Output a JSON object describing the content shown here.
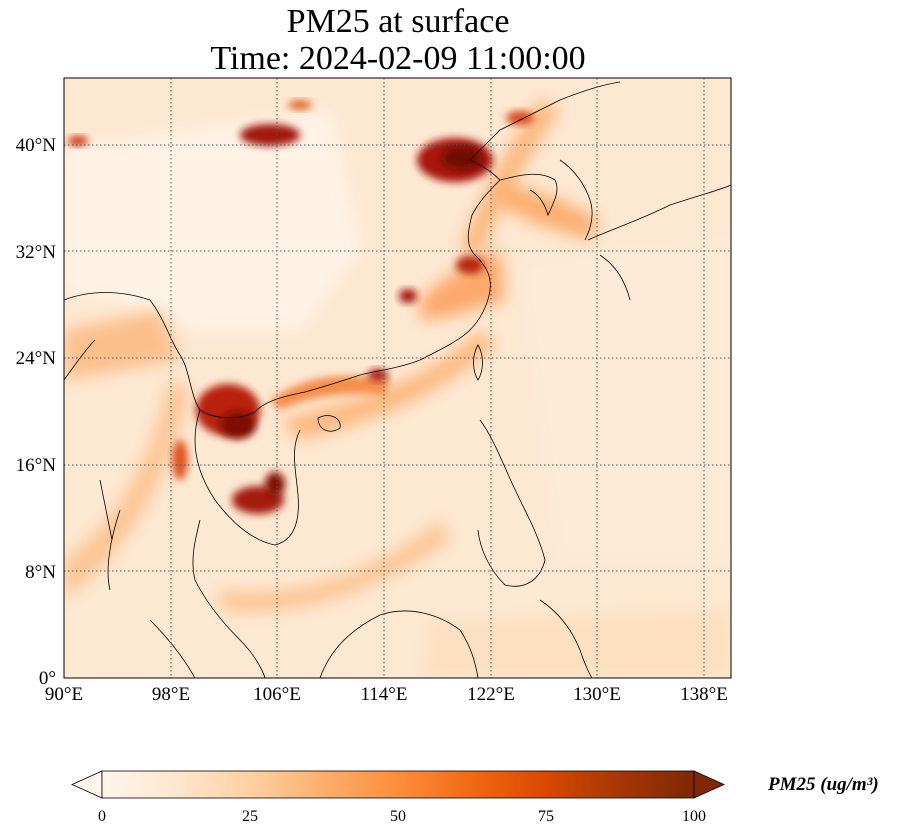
{
  "title": {
    "line1": "PM25 at surface",
    "line2": "Time: 2024-02-09 11:00:00"
  },
  "map": {
    "extent": {
      "lon": [
        90,
        140
      ],
      "lat": [
        0,
        45
      ]
    },
    "gridlines": "dotted",
    "lon_ticks": [
      {
        "value": 90,
        "label": "90°E"
      },
      {
        "value": 98,
        "label": "98°E"
      },
      {
        "value": 106,
        "label": "106°E"
      },
      {
        "value": 114,
        "label": "114°E"
      },
      {
        "value": 122,
        "label": "122°E"
      },
      {
        "value": 130,
        "label": "130°E"
      },
      {
        "value": 138,
        "label": "138°E"
      }
    ],
    "lat_ticks": [
      {
        "value": 0,
        "label": "0°"
      },
      {
        "value": 8,
        "label": "8°N"
      },
      {
        "value": 16,
        "label": "16°N"
      },
      {
        "value": 24,
        "label": "24°N"
      },
      {
        "value": 32,
        "label": "32°N"
      },
      {
        "value": 40,
        "label": "40°N"
      }
    ]
  },
  "colorbar": {
    "title": "PM25 (ug/m³)",
    "range": [
      0,
      100
    ],
    "ticks": [
      {
        "value": 0,
        "label": "0"
      },
      {
        "value": 25,
        "label": "25"
      },
      {
        "value": 50,
        "label": "50"
      },
      {
        "value": 75,
        "label": "75"
      },
      {
        "value": 100,
        "label": "100"
      }
    ],
    "colors": [
      "#fff5eb",
      "#fee6ce",
      "#fdd0a2",
      "#fdae6b",
      "#fd8d3c",
      "#f16913",
      "#d94801",
      "#a63603",
      "#7f2704"
    ]
  }
}
